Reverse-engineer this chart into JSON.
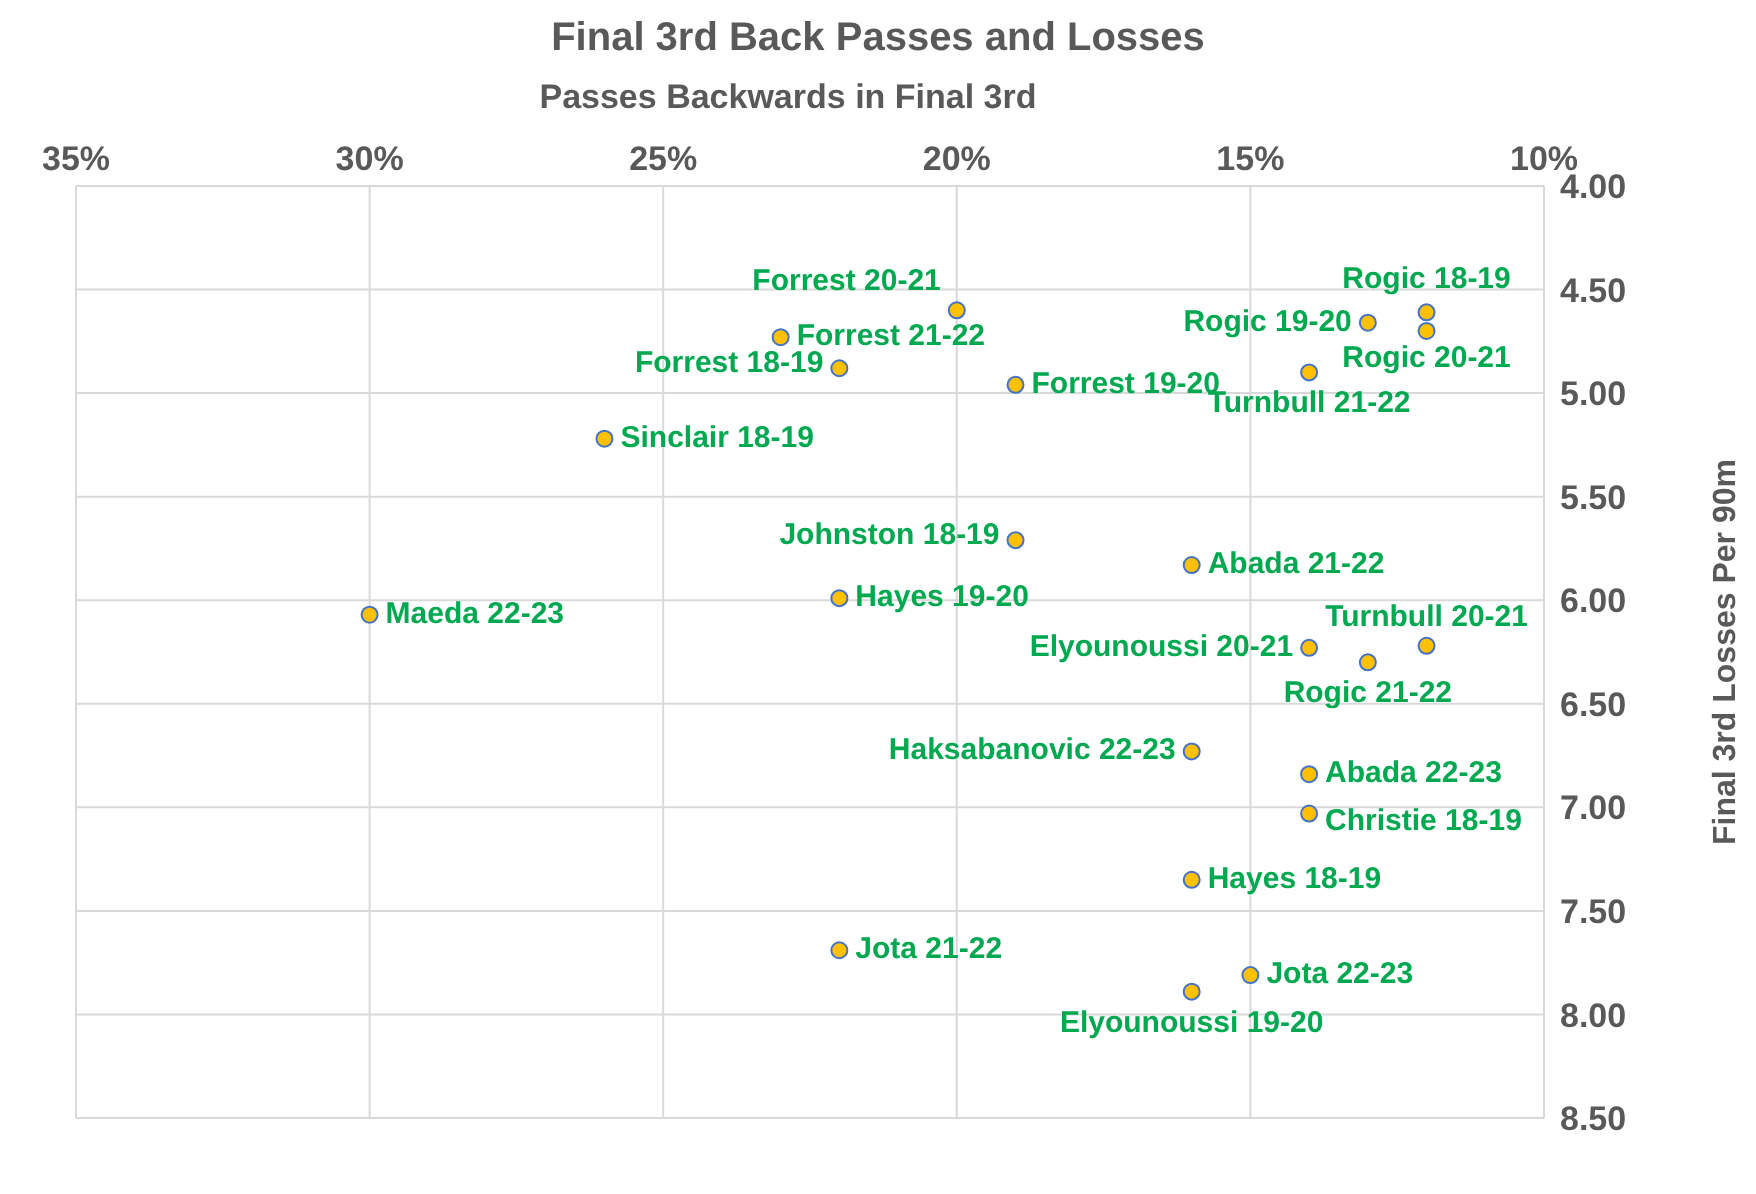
{
  "chart_data": {
    "type": "scatter",
    "title": "Final 3rd Back Passes and Losses",
    "xlabel": "Passes Backwards in Final 3rd",
    "ylabel": "Final 3rd Losses Per 90m",
    "xlim": [
      35,
      10
    ],
    "xticks": [
      {
        "value": 35,
        "label": "35%"
      },
      {
        "value": 30,
        "label": "30%"
      },
      {
        "value": 25,
        "label": "25%"
      },
      {
        "value": 20,
        "label": "20%"
      },
      {
        "value": 15,
        "label": "15%"
      },
      {
        "value": 10,
        "label": "10%"
      }
    ],
    "ylim": [
      8.5,
      4
    ],
    "yticks": [
      {
        "value": 4,
        "label": "4.00"
      },
      {
        "value": 4.5,
        "label": "4.50"
      },
      {
        "value": 5,
        "label": "5.00"
      },
      {
        "value": 5.5,
        "label": "5.50"
      },
      {
        "value": 6,
        "label": "6.00"
      },
      {
        "value": 6.5,
        "label": "6.50"
      },
      {
        "value": 7,
        "label": "7.00"
      },
      {
        "value": 7.5,
        "label": "7.50"
      },
      {
        "value": 8,
        "label": "8.00"
      },
      {
        "value": 8.5,
        "label": "8.50"
      }
    ],
    "grid": true,
    "marker": "circle",
    "series": [
      {
        "color": "#ffc000",
        "x": [
          20,
          23,
          22,
          19,
          26,
          12,
          13,
          12,
          14,
          19,
          16,
          22,
          30,
          14,
          12,
          13,
          16,
          14,
          14,
          16,
          22,
          15,
          16
        ],
        "values": [
          4.6,
          4.73,
          4.88,
          4.96,
          5.22,
          4.61,
          4.66,
          4.7,
          4.9,
          5.71,
          5.83,
          5.99,
          6.07,
          6.23,
          6.22,
          6.3,
          6.73,
          6.84,
          7.03,
          7.35,
          7.69,
          7.81,
          7.89
        ],
        "value_labels": [
          "Forrest 20-21",
          "Forrest 21-22",
          "Forrest 18-19",
          "Forrest 19-20",
          "Sinclair 18-19",
          "Rogic 18-19",
          "Rogic 19-20",
          "Rogic 20-21",
          "Turnbull 21-22",
          "Johnston 18-19",
          "Abada 21-22",
          "Hayes 19-20",
          "Maeda 22-23",
          "Elyounoussi 20-21",
          "Turnbull 20-21",
          "Rogic 21-22",
          "Haksabanovic 22-23",
          "Abada 22-23",
          "Christie 18-19",
          "Hayes 18-19",
          "Jota 21-22",
          "Jota 22-23",
          "Elyounoussi 19-20"
        ]
      }
    ]
  }
}
